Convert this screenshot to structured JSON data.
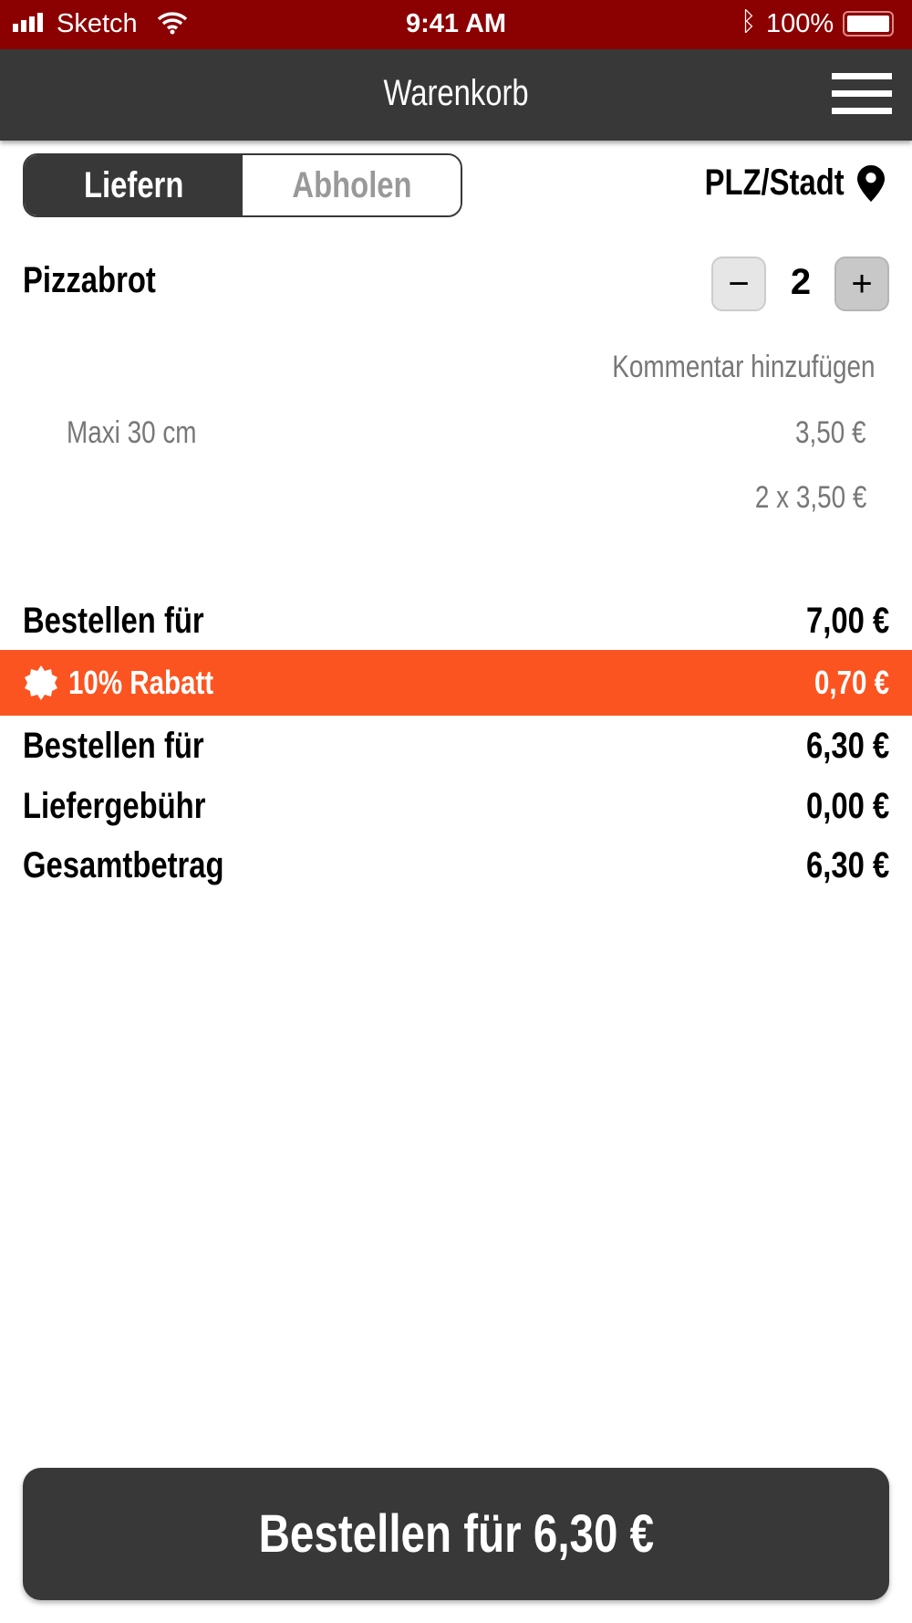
{
  "status_bar": {
    "carrier": "Sketch",
    "time": "9:41 AM",
    "battery": "100%"
  },
  "header": {
    "title": "Warenkorb",
    "menu_icon": "hamburger-icon"
  },
  "mode_toggle": {
    "options": [
      "Liefern",
      "Abholen"
    ],
    "selected": "Liefern"
  },
  "location": {
    "label": "PLZ/Stadt",
    "icon": "map-pin-icon"
  },
  "cart_item": {
    "name": "Pizzabrot",
    "quantity": "2",
    "decrease": "−",
    "increase": "+",
    "comment_link": "Kommentar hinzufügen",
    "variant": "Maxi 30 cm",
    "unit_price": "3,50 €",
    "line_total": "2 x 3,50 €"
  },
  "summary": {
    "subtotal_label": "Bestellen für",
    "subtotal": "7,00 €",
    "discount_label": "10% Rabatt",
    "discount": "0,70 €",
    "discount_icon": "badge-icon",
    "after_discount_label": "Bestellen für",
    "after_discount": "6,30 €",
    "delivery_label": "Liefergebühr",
    "delivery": "0,00 €",
    "total_label": "Gesamtbetrag",
    "total": "6,30 €"
  },
  "order_button": "Bestellen für 6,30 €",
  "colors": {
    "status_bar": "#8b0000",
    "nav": "#383838",
    "discount": "#fc5420"
  }
}
